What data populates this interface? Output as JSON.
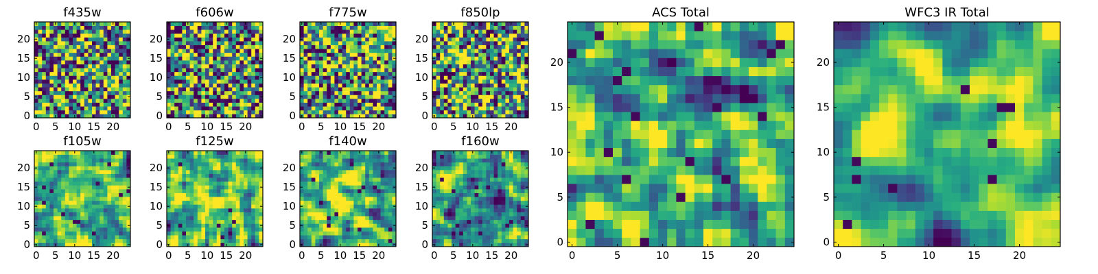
{
  "chart_data": [
    {
      "type": "heatmap",
      "title": "f435w",
      "xlim": [
        0,
        24
      ],
      "ylim": [
        0,
        24
      ],
      "xticks": [
        0,
        5,
        10,
        15,
        20
      ],
      "yticks": [
        0,
        5,
        10,
        15,
        20
      ],
      "colormap": "viridis",
      "seed": 11,
      "smoothing": 0,
      "bias": 0.58
    },
    {
      "type": "heatmap",
      "title": "f606w",
      "xlim": [
        0,
        24
      ],
      "ylim": [
        0,
        24
      ],
      "xticks": [
        0,
        5,
        10,
        15,
        20
      ],
      "yticks": [
        0,
        5,
        10,
        15,
        20
      ],
      "colormap": "viridis",
      "seed": 23,
      "smoothing": 0,
      "bias": 0.52
    },
    {
      "type": "heatmap",
      "title": "f775w",
      "xlim": [
        0,
        24
      ],
      "ylim": [
        0,
        24
      ],
      "xticks": [
        0,
        5,
        10,
        15,
        20
      ],
      "yticks": [
        0,
        5,
        10,
        15,
        20
      ],
      "colormap": "viridis",
      "seed": 37,
      "smoothing": 0,
      "bias": 0.55
    },
    {
      "type": "heatmap",
      "title": "f850lp",
      "xlim": [
        0,
        24
      ],
      "ylim": [
        0,
        24
      ],
      "xticks": [
        0,
        5,
        10,
        15,
        20
      ],
      "yticks": [
        0,
        5,
        10,
        15,
        20
      ],
      "colormap": "viridis",
      "seed": 41,
      "smoothing": 0,
      "bias": 0.55
    },
    {
      "type": "heatmap",
      "title": "f105w",
      "xlim": [
        0,
        24
      ],
      "ylim": [
        0,
        24
      ],
      "xticks": [
        0,
        5,
        10,
        15,
        20
      ],
      "yticks": [
        0,
        5,
        10,
        15,
        20
      ],
      "colormap": "viridis",
      "seed": 53,
      "smoothing": 1,
      "bias": 0.66
    },
    {
      "type": "heatmap",
      "title": "f125w",
      "xlim": [
        0,
        24
      ],
      "ylim": [
        0,
        24
      ],
      "xticks": [
        0,
        5,
        10,
        15,
        20
      ],
      "yticks": [
        0,
        5,
        10,
        15,
        20
      ],
      "colormap": "viridis",
      "seed": 67,
      "smoothing": 1,
      "bias": 0.64
    },
    {
      "type": "heatmap",
      "title": "f140w",
      "xlim": [
        0,
        24
      ],
      "ylim": [
        0,
        24
      ],
      "xticks": [
        0,
        5,
        10,
        15,
        20
      ],
      "yticks": [
        0,
        5,
        10,
        15,
        20
      ],
      "colormap": "viridis",
      "seed": 71,
      "smoothing": 1,
      "bias": 0.68
    },
    {
      "type": "heatmap",
      "title": "f160w",
      "xlim": [
        0,
        24
      ],
      "ylim": [
        0,
        24
      ],
      "xticks": [
        0,
        5,
        10,
        15,
        20
      ],
      "yticks": [
        0,
        5,
        10,
        15,
        20
      ],
      "colormap": "viridis",
      "seed": 83,
      "smoothing": 1,
      "bias": 0.6
    },
    {
      "type": "heatmap",
      "title": "ACS Total",
      "xlim": [
        0,
        24
      ],
      "ylim": [
        0,
        24
      ],
      "xticks": [
        0,
        5,
        10,
        15,
        20
      ],
      "yticks": [
        0,
        5,
        10,
        15,
        20
      ],
      "colormap": "viridis",
      "seed": 97,
      "smoothing": 1,
      "bias": 0.62
    },
    {
      "type": "heatmap",
      "title": "WFC3 IR Total",
      "xlim": [
        0,
        24
      ],
      "ylim": [
        0,
        24
      ],
      "xticks": [
        0,
        5,
        10,
        15,
        20
      ],
      "yticks": [
        0,
        5,
        10,
        15,
        20
      ],
      "colormap": "viridis",
      "seed": 109,
      "smoothing": 2,
      "bias": 0.64
    }
  ]
}
